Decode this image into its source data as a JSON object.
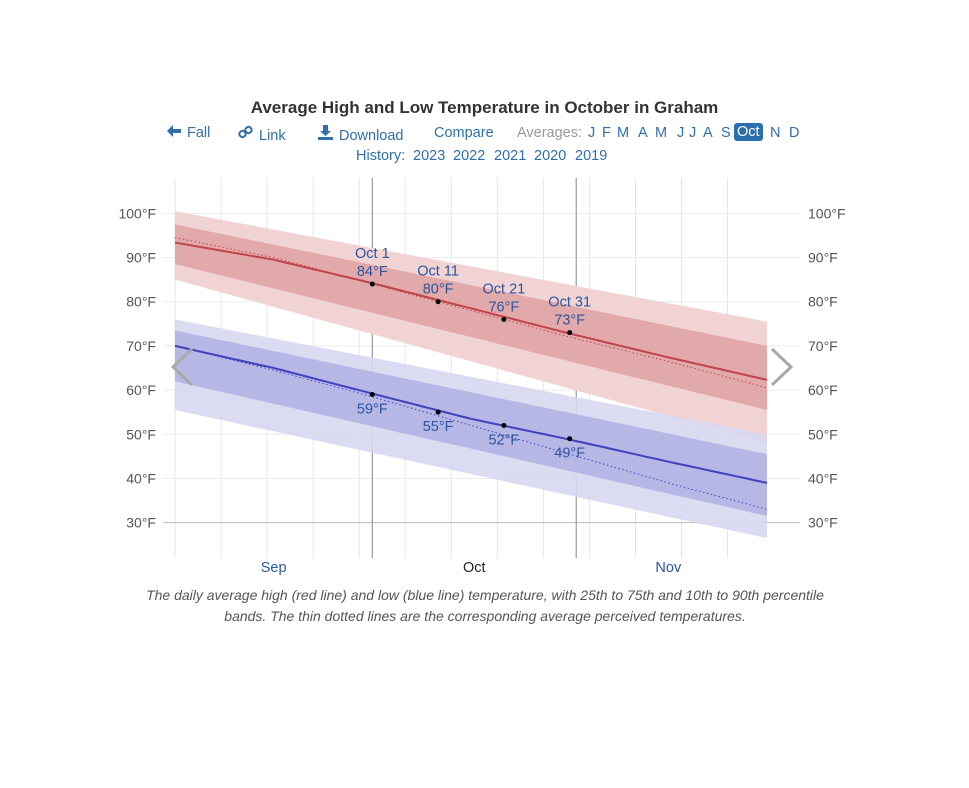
{
  "title": "Average High and Low Temperature in October in Graham",
  "toolbar": {
    "fall_label": "Fall",
    "link_label": "Link",
    "download_label": "Download",
    "compare_label": "Compare",
    "averages_label": "Averages:",
    "months": [
      "J",
      "F",
      "M",
      "A",
      "M",
      "J",
      "J",
      "A",
      "S",
      "Oct",
      "N",
      "D"
    ],
    "active_month": "Oct"
  },
  "history": {
    "label": "History:",
    "years": [
      "2023",
      "2022",
      "2021",
      "2020",
      "2019"
    ]
  },
  "caption": "The daily average high (red line) and low (blue line) temperature, with 25th to 75th and 10th to 90th percentile bands. The thin dotted lines are the corresponding average perceived temperatures.",
  "colors": {
    "high_line": "#c0444a",
    "high_band_inner": "#e2a9ab",
    "high_band_outer": "#f1d3d4",
    "low_line": "#4040c0",
    "low_band_inner": "#b3b3e3",
    "low_band_outer": "#d7d7f1",
    "label_blue": "#2b55a0"
  },
  "chart_data": {
    "type": "line",
    "title": "Average High and Low Temperature in October in Graham",
    "ylabel": "",
    "xlabel": "",
    "ylim": [
      22,
      108
    ],
    "y_ticks": [
      30,
      40,
      50,
      60,
      70,
      80,
      90,
      100
    ],
    "y_tick_labels": [
      "30°F",
      "40°F",
      "50°F",
      "60°F",
      "70°F",
      "80°F",
      "90°F",
      "100°F"
    ],
    "x_range_days": [
      -30,
      60
    ],
    "month_labels": [
      {
        "label": "Sep",
        "day": -15
      },
      {
        "label": "Oct",
        "day": 15.5
      },
      {
        "label": "Nov",
        "day": 45
      }
    ],
    "series": [
      {
        "name": "Average High",
        "x": [
          -30,
          -15,
          0,
          15,
          30,
          45,
          60
        ],
        "values": [
          93.4,
          89.5,
          84.2,
          78.5,
          72.8,
          67.4,
          62.3
        ]
      },
      {
        "name": "Average High Perceived",
        "x": [
          -30,
          -15,
          0,
          15,
          30,
          45,
          60
        ],
        "values": [
          94.5,
          90.0,
          84.0,
          78.0,
          72.0,
          66.5,
          60.5
        ]
      },
      {
        "name": "High 25th-75th low",
        "x": [
          -30,
          60
        ],
        "values": [
          88.5,
          55.5
        ]
      },
      {
        "name": "High 25th-75th high",
        "x": [
          -30,
          60
        ],
        "values": [
          97.5,
          70.0
        ]
      },
      {
        "name": "High 10th-90th low",
        "x": [
          -30,
          60
        ],
        "values": [
          85.0,
          48.0
        ]
      },
      {
        "name": "High 10th-90th high",
        "x": [
          -30,
          60
        ],
        "values": [
          100.5,
          75.5
        ]
      },
      {
        "name": "Average Low",
        "x": [
          -30,
          -15,
          0,
          15,
          30,
          45,
          60
        ],
        "values": [
          70.0,
          65.0,
          59.2,
          53.5,
          48.8,
          43.8,
          39.0
        ]
      },
      {
        "name": "Average Low Perceived",
        "x": [
          -30,
          -15,
          0,
          15,
          30,
          45,
          60
        ],
        "values": [
          70.0,
          64.5,
          58.5,
          52.0,
          45.5,
          39.0,
          33.0
        ]
      },
      {
        "name": "Low 25th-75th low",
        "x": [
          -30,
          60
        ],
        "values": [
          62.0,
          31.5
        ]
      },
      {
        "name": "Low 25th-75th high",
        "x": [
          -30,
          60
        ],
        "values": [
          73.5,
          45.5
        ]
      },
      {
        "name": "Low 10th-90th low",
        "x": [
          -30,
          60
        ],
        "values": [
          55.5,
          26.5
        ]
      },
      {
        "name": "Low 10th-90th high",
        "x": [
          -30,
          60
        ],
        "values": [
          76.0,
          50.0
        ]
      }
    ],
    "annotations": [
      {
        "date": "Oct 1",
        "day": 0,
        "high": 84,
        "low": 59,
        "high_label": "84°F",
        "low_label": "59°F"
      },
      {
        "date": "Oct 11",
        "day": 10,
        "high": 80,
        "low": 55,
        "high_label": "80°F",
        "low_label": "55°F"
      },
      {
        "date": "Oct 21",
        "day": 20,
        "high": 76,
        "low": 52,
        "high_label": "76°F",
        "low_label": "52°F"
      },
      {
        "date": "Oct 31",
        "day": 30,
        "high": 73,
        "low": 49,
        "high_label": "73°F",
        "low_label": "49°F"
      }
    ],
    "month_boundaries": [
      0,
      31
    ],
    "legend": "none",
    "grid": true
  }
}
